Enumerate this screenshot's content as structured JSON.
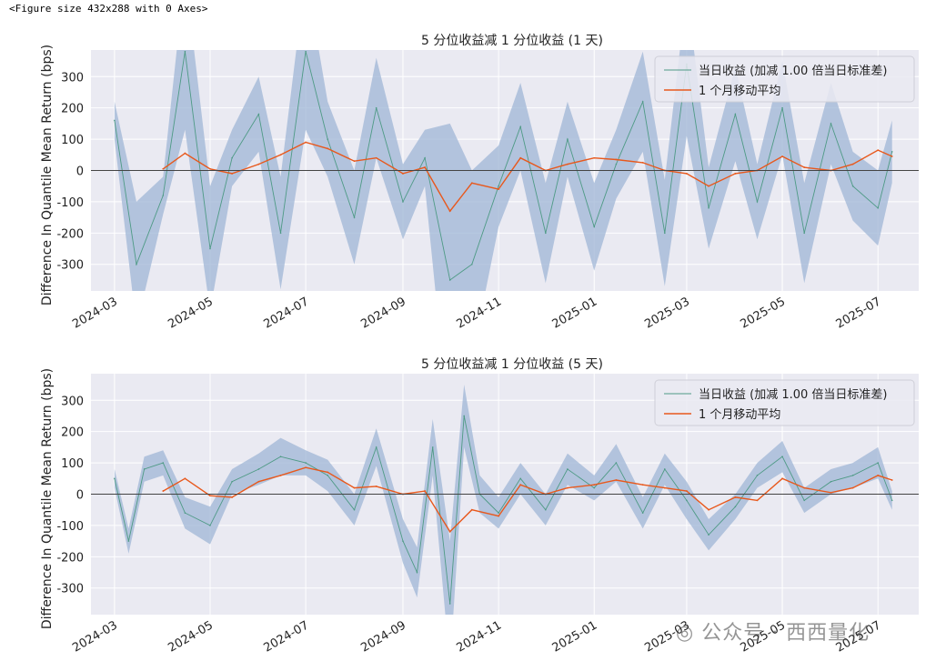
{
  "figure_note": "<Figure size 432x288 with 0 Axes>",
  "watermark": "公众号 · 西西量化",
  "colors": {
    "band": "#9fb6d6",
    "daily_line": "#4e9a85",
    "ma_line": "#e8581c",
    "zero_line": "#444444",
    "axes_bg": "#eaeaf2",
    "grid": "#ffffff"
  },
  "chart_data": [
    {
      "type": "line",
      "title": "5 分位收益减 1 分位收益 (1 天)",
      "ylabel": "Difference In Quantile Mean Return (bps)",
      "ylim": [
        -385,
        385
      ],
      "yticks": [
        -300,
        -200,
        -100,
        0,
        100,
        200,
        300
      ],
      "xlim": [
        "2024-02-15",
        "2025-07-27"
      ],
      "xticks": [
        "2024-03",
        "2024-05",
        "2024-07",
        "2024-09",
        "2024-11",
        "2025-01",
        "2025-03",
        "2025-05",
        "2025-07"
      ],
      "legend": {
        "placement": "top-right",
        "entries": [
          "当日收益 (加减 1.00 倍当日标准差)",
          "1 个月移动平均"
        ]
      },
      "grid": true,
      "series": [
        {
          "name": "当日收益 (加减 1.00 倍当日标准差)",
          "x": [
            "2024-03-01",
            "2024-03-15",
            "2024-04-01",
            "2024-04-15",
            "2024-05-01",
            "2024-05-15",
            "2024-06-01",
            "2024-06-15",
            "2024-07-01",
            "2024-07-15",
            "2024-08-01",
            "2024-08-15",
            "2024-09-01",
            "2024-09-15",
            "2024-10-01",
            "2024-10-15",
            "2024-11-01",
            "2024-11-15",
            "2024-12-01",
            "2024-12-15",
            "2025-01-01",
            "2025-01-15",
            "2025-02-01",
            "2025-02-15",
            "2025-03-01",
            "2025-03-15",
            "2025-04-01",
            "2025-04-15",
            "2025-05-01",
            "2025-05-15",
            "2025-06-01",
            "2025-06-15",
            "2025-07-01",
            "2025-07-10"
          ],
          "values": [
            160,
            -300,
            -80,
            380,
            -250,
            40,
            180,
            -200,
            380,
            100,
            -150,
            200,
            -100,
            40,
            -350,
            -300,
            -50,
            140,
            -200,
            100,
            -180,
            20,
            220,
            -200,
            340,
            -120,
            180,
            -100,
            200,
            -200,
            150,
            -50,
            -120,
            60
          ],
          "band": [
            60,
            200,
            60,
            250,
            200,
            90,
            120,
            180,
            250,
            120,
            150,
            160,
            120,
            90,
            500,
            300,
            130,
            140,
            160,
            120,
            140,
            110,
            160,
            170,
            230,
            130,
            150,
            120,
            150,
            160,
            130,
            110,
            120,
            100
          ]
        },
        {
          "name": "1 个月移动平均",
          "x": [
            "2024-04-01",
            "2024-04-15",
            "2024-05-01",
            "2024-05-15",
            "2024-06-01",
            "2024-06-15",
            "2024-07-01",
            "2024-07-15",
            "2024-08-01",
            "2024-08-15",
            "2024-09-01",
            "2024-09-15",
            "2024-10-01",
            "2024-10-15",
            "2024-11-01",
            "2024-11-15",
            "2024-12-01",
            "2024-12-15",
            "2025-01-01",
            "2025-01-15",
            "2025-02-01",
            "2025-02-15",
            "2025-03-01",
            "2025-03-15",
            "2025-04-01",
            "2025-04-15",
            "2025-05-01",
            "2025-05-15",
            "2025-06-01",
            "2025-06-15",
            "2025-07-01",
            "2025-07-10"
          ],
          "values": [
            5,
            55,
            5,
            -10,
            20,
            50,
            90,
            70,
            30,
            40,
            -10,
            10,
            -130,
            -40,
            -60,
            40,
            0,
            20,
            40,
            35,
            25,
            0,
            -10,
            -50,
            -10,
            0,
            45,
            10,
            0,
            20,
            65,
            45
          ]
        }
      ]
    },
    {
      "type": "line",
      "title": "5 分位收益减 1 分位收益 (5 天)",
      "ylabel": "Difference In Quantile Mean Return (bps)",
      "ylim": [
        -385,
        385
      ],
      "yticks": [
        -300,
        -200,
        -100,
        0,
        100,
        200,
        300
      ],
      "xlim": [
        "2024-02-15",
        "2025-07-27"
      ],
      "xticks": [
        "2024-03",
        "2024-05",
        "2024-07",
        "2024-09",
        "2024-11",
        "2025-01",
        "2025-03",
        "2025-05",
        "2025-07"
      ],
      "legend": {
        "placement": "top-right",
        "entries": [
          "当日收益 (加减 1.00 倍当日标准差)",
          "1 个月移动平均"
        ]
      },
      "grid": true,
      "series": [
        {
          "name": "当日收益 (加减 1.00 倍当日标准差)",
          "x": [
            "2024-03-01",
            "2024-03-10",
            "2024-03-20",
            "2024-04-01",
            "2024-04-15",
            "2024-05-01",
            "2024-05-15",
            "2024-06-01",
            "2024-06-15",
            "2024-07-01",
            "2024-07-15",
            "2024-08-01",
            "2024-08-15",
            "2024-09-01",
            "2024-09-10",
            "2024-09-20",
            "2024-10-01",
            "2024-10-10",
            "2024-10-20",
            "2024-11-01",
            "2024-11-15",
            "2024-12-01",
            "2024-12-15",
            "2025-01-01",
            "2025-01-15",
            "2025-02-01",
            "2025-02-15",
            "2025-03-01",
            "2025-03-15",
            "2025-04-01",
            "2025-04-15",
            "2025-05-01",
            "2025-05-15",
            "2025-06-01",
            "2025-06-15",
            "2025-07-01",
            "2025-07-10"
          ],
          "values": [
            50,
            -150,
            80,
            100,
            -60,
            -100,
            40,
            80,
            120,
            100,
            60,
            -50,
            150,
            -150,
            -250,
            150,
            -350,
            250,
            0,
            -60,
            50,
            -50,
            80,
            20,
            100,
            -60,
            80,
            -20,
            -130,
            -40,
            60,
            120,
            -20,
            40,
            60,
            100,
            -20
          ],
          "band": [
            30,
            40,
            40,
            40,
            50,
            60,
            40,
            50,
            60,
            40,
            50,
            50,
            60,
            70,
            80,
            90,
            200,
            100,
            60,
            50,
            50,
            50,
            50,
            40,
            60,
            50,
            50,
            60,
            50,
            40,
            40,
            50,
            40,
            40,
            40,
            50,
            30
          ]
        },
        {
          "name": "1 个月移动平均",
          "x": [
            "2024-04-01",
            "2024-04-15",
            "2024-05-01",
            "2024-05-15",
            "2024-06-01",
            "2024-06-15",
            "2024-07-01",
            "2024-07-15",
            "2024-08-01",
            "2024-08-15",
            "2024-09-01",
            "2024-09-15",
            "2024-10-01",
            "2024-10-15",
            "2024-11-01",
            "2024-11-15",
            "2024-12-01",
            "2024-12-15",
            "2025-01-01",
            "2025-01-15",
            "2025-02-01",
            "2025-02-15",
            "2025-03-01",
            "2025-03-15",
            "2025-04-01",
            "2025-04-15",
            "2025-05-01",
            "2025-05-15",
            "2025-06-01",
            "2025-06-15",
            "2025-07-01",
            "2025-07-10"
          ],
          "values": [
            10,
            50,
            -5,
            -10,
            40,
            60,
            85,
            70,
            20,
            25,
            0,
            10,
            -120,
            -50,
            -70,
            30,
            0,
            20,
            30,
            45,
            30,
            20,
            10,
            -50,
            -10,
            -20,
            50,
            20,
            5,
            20,
            60,
            45
          ]
        }
      ]
    }
  ]
}
